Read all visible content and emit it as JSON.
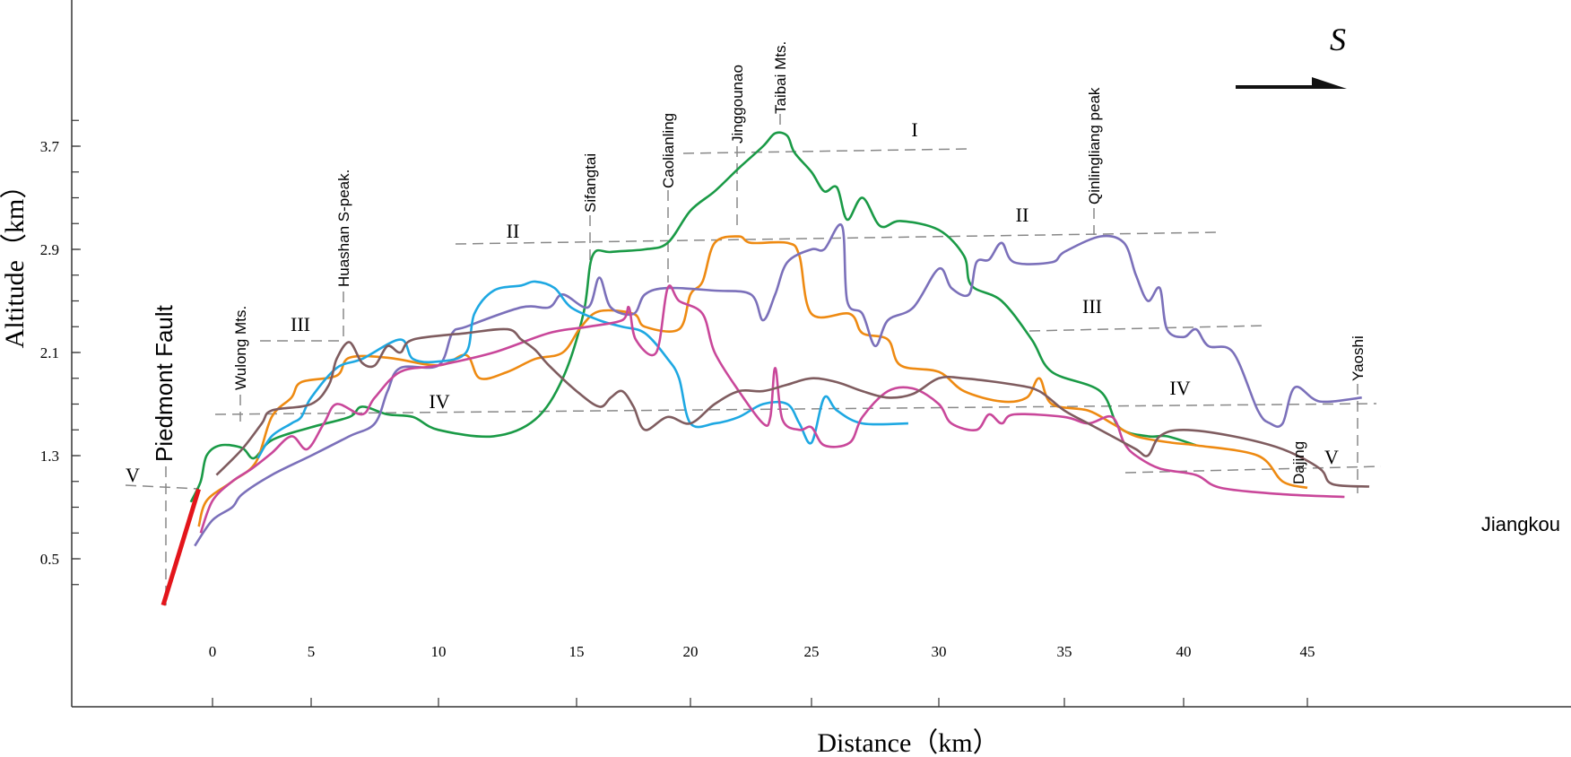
{
  "chart_data": {
    "type": "line",
    "title": "",
    "xlabel": "Distance（km）",
    "ylabel": "Altitude（km）",
    "xlim": [
      -5.8,
      55.9
    ],
    "ylim": [
      -0.66,
      4.84
    ],
    "x_ticks": [
      0,
      5,
      10,
      15,
      20,
      25,
      30,
      35,
      40,
      45
    ],
    "x_tick_labels": [
      "0",
      "5",
      "10",
      "15",
      "20",
      "25",
      "30",
      "35",
      "40",
      "45"
    ],
    "y_ticks": [
      3.7,
      2.9,
      2.1,
      1.3,
      0.5
    ],
    "y_tick_labels": [
      "3.7",
      "2.9",
      "2.1",
      "1.3",
      "0.5"
    ],
    "grid": false,
    "legend": "none",
    "direction_label": "S",
    "surface_labels": [
      "I",
      "II",
      "II",
      "III",
      "III",
      "IV",
      "IV",
      "V",
      "V"
    ],
    "place_labels": [
      "Piedmont Fault",
      "Wulong Mts.",
      "Huashan S-peak.",
      "Sifangtai",
      "Caolianling",
      "Jinggounao",
      "Taibai Mts.",
      "Qinlingliang peak",
      "Yaoshi",
      "Dajing",
      "Jiangkou"
    ],
    "fault": {
      "color": "#e3151b",
      "points": [
        [
          -2.5,
          0.14
        ],
        [
          -0.7,
          1.04
        ]
      ]
    },
    "series": [
      {
        "color": "#1a9a46",
        "points": [
          [
            -1.1,
            0.94
          ],
          [
            -0.6,
            1.1
          ],
          [
            -0.3,
            1.3
          ],
          [
            0.4,
            1.38
          ],
          [
            1.5,
            1.36
          ],
          [
            2.1,
            1.28
          ],
          [
            3,
            1.42
          ],
          [
            5,
            1.52
          ],
          [
            6.5,
            1.6
          ],
          [
            7,
            1.68
          ],
          [
            8,
            1.62
          ],
          [
            9,
            1.6
          ],
          [
            10,
            1.5
          ],
          [
            12,
            1.45
          ],
          [
            13.5,
            1.58
          ],
          [
            14.5,
            1.9
          ],
          [
            15.3,
            2.4
          ],
          [
            15.7,
            2.85
          ],
          [
            16.5,
            2.88
          ],
          [
            18,
            2.9
          ],
          [
            19,
            2.95
          ],
          [
            20,
            3.2
          ],
          [
            21,
            3.35
          ],
          [
            22,
            3.53
          ],
          [
            23,
            3.7
          ],
          [
            23.5,
            3.8
          ],
          [
            24,
            3.78
          ],
          [
            24.3,
            3.65
          ],
          [
            25,
            3.5
          ],
          [
            25.5,
            3.35
          ],
          [
            26,
            3.38
          ],
          [
            26.4,
            3.13
          ],
          [
            27,
            3.3
          ],
          [
            27.7,
            3.08
          ],
          [
            28.5,
            3.12
          ],
          [
            30,
            3.05
          ],
          [
            31,
            2.85
          ],
          [
            31.3,
            2.62
          ],
          [
            32.5,
            2.5
          ],
          [
            33.7,
            2.2
          ],
          [
            34.5,
            1.95
          ],
          [
            36.5,
            1.8
          ],
          [
            37.3,
            1.52
          ],
          [
            38.5,
            1.45
          ],
          [
            39.3,
            1.45
          ],
          [
            40.5,
            1.38
          ]
        ]
      },
      {
        "color": "#ee8a12",
        "points": [
          [
            -0.7,
            0.75
          ],
          [
            -0.3,
            0.95
          ],
          [
            1,
            1.1
          ],
          [
            2.2,
            1.25
          ],
          [
            3,
            1.6
          ],
          [
            4,
            1.75
          ],
          [
            4.5,
            1.87
          ],
          [
            6,
            1.92
          ],
          [
            6.5,
            2.06
          ],
          [
            8,
            2.06
          ],
          [
            10,
            2.0
          ],
          [
            11,
            2.08
          ],
          [
            11.5,
            1.9
          ],
          [
            12.5,
            1.95
          ],
          [
            13.5,
            2.05
          ],
          [
            14.5,
            2.1
          ],
          [
            15.2,
            2.3
          ],
          [
            16,
            2.42
          ],
          [
            17.5,
            2.4
          ],
          [
            18,
            2.3
          ],
          [
            19.5,
            2.28
          ],
          [
            20,
            2.55
          ],
          [
            20.5,
            2.65
          ],
          [
            21,
            2.95
          ],
          [
            22,
            3.0
          ],
          [
            22.5,
            2.95
          ],
          [
            24,
            2.95
          ],
          [
            24.5,
            2.85
          ],
          [
            25,
            2.4
          ],
          [
            26.5,
            2.4
          ],
          [
            27,
            2.25
          ],
          [
            28,
            2.2
          ],
          [
            28.5,
            2.0
          ],
          [
            30,
            1.95
          ],
          [
            31,
            1.8
          ],
          [
            32.5,
            1.72
          ],
          [
            33.5,
            1.75
          ],
          [
            34,
            1.9
          ],
          [
            34.5,
            1.7
          ],
          [
            36,
            1.65
          ],
          [
            37,
            1.55
          ],
          [
            38,
            1.45
          ],
          [
            39.5,
            1.4
          ],
          [
            40.5,
            1.38
          ],
          [
            43,
            1.3
          ],
          [
            44,
            1.1
          ],
          [
            45,
            1.05
          ]
        ]
      },
      {
        "color": "#7b70ba",
        "points": [
          [
            -0.9,
            0.6
          ],
          [
            0,
            0.8
          ],
          [
            1,
            0.9
          ],
          [
            1.5,
            1.0
          ],
          [
            3,
            1.15
          ],
          [
            5,
            1.3
          ],
          [
            6.5,
            1.45
          ],
          [
            7.5,
            1.55
          ],
          [
            8,
            1.8
          ],
          [
            8.5,
            1.98
          ],
          [
            10,
            2.0
          ],
          [
            10.5,
            2.25
          ],
          [
            11,
            2.3
          ],
          [
            13,
            2.45
          ],
          [
            14,
            2.45
          ],
          [
            14.5,
            2.55
          ],
          [
            15.5,
            2.45
          ],
          [
            16,
            2.68
          ],
          [
            16.5,
            2.45
          ],
          [
            17.5,
            2.4
          ],
          [
            18,
            2.55
          ],
          [
            19,
            2.6
          ],
          [
            21,
            2.58
          ],
          [
            22.5,
            2.55
          ],
          [
            23,
            2.35
          ],
          [
            23.5,
            2.55
          ],
          [
            24,
            2.8
          ],
          [
            25,
            2.9
          ],
          [
            25.5,
            2.9
          ],
          [
            26.2,
            3.08
          ],
          [
            26.4,
            2.5
          ],
          [
            27,
            2.4
          ],
          [
            27.5,
            2.15
          ],
          [
            28,
            2.35
          ],
          [
            29,
            2.45
          ],
          [
            30,
            2.75
          ],
          [
            30.5,
            2.6
          ],
          [
            31.2,
            2.55
          ],
          [
            31.5,
            2.8
          ],
          [
            32,
            2.82
          ],
          [
            32.5,
            2.95
          ],
          [
            33,
            2.8
          ],
          [
            34.5,
            2.8
          ],
          [
            35,
            2.88
          ],
          [
            36.5,
            3.0
          ],
          [
            37.5,
            2.95
          ],
          [
            38,
            2.7
          ],
          [
            38.5,
            2.5
          ],
          [
            39,
            2.6
          ],
          [
            39.3,
            2.28
          ],
          [
            40,
            2.22
          ],
          [
            40.5,
            2.28
          ],
          [
            41,
            2.15
          ],
          [
            42,
            2.1
          ],
          [
            43,
            1.65
          ],
          [
            43.5,
            1.55
          ],
          [
            44,
            1.55
          ],
          [
            44.5,
            1.83
          ],
          [
            45.5,
            1.72
          ],
          [
            47.2,
            1.75
          ]
        ]
      },
      {
        "color": "#1ea8e2",
        "points": [
          [
            2.3,
            1.28
          ],
          [
            3,
            1.45
          ],
          [
            4,
            1.55
          ],
          [
            4.5,
            1.6
          ],
          [
            5,
            1.75
          ],
          [
            6,
            1.98
          ],
          [
            7,
            2.05
          ],
          [
            8.5,
            2.2
          ],
          [
            9,
            2.05
          ],
          [
            10,
            2.03
          ],
          [
            11,
            2.1
          ],
          [
            11.3,
            2.4
          ],
          [
            12,
            2.58
          ],
          [
            13,
            2.62
          ],
          [
            13.5,
            2.65
          ],
          [
            14.2,
            2.6
          ],
          [
            14.8,
            2.45
          ],
          [
            16,
            2.35
          ],
          [
            17,
            2.3
          ],
          [
            18,
            2.25
          ],
          [
            19,
            2.05
          ],
          [
            19.5,
            1.9
          ],
          [
            20,
            1.55
          ],
          [
            21,
            1.55
          ],
          [
            22,
            1.6
          ],
          [
            23,
            1.7
          ],
          [
            24,
            1.7
          ],
          [
            24.5,
            1.55
          ],
          [
            25,
            1.4
          ],
          [
            25.5,
            1.75
          ],
          [
            26,
            1.65
          ],
          [
            27,
            1.55
          ],
          [
            28.8,
            1.55
          ]
        ]
      },
      {
        "color": "#c9479a",
        "points": [
          [
            -0.6,
            0.7
          ],
          [
            0,
            0.95
          ],
          [
            1,
            1.1
          ],
          [
            2,
            1.2
          ],
          [
            3,
            1.32
          ],
          [
            4,
            1.45
          ],
          [
            4.8,
            1.35
          ],
          [
            5.5,
            1.55
          ],
          [
            6,
            1.7
          ],
          [
            7,
            1.62
          ],
          [
            7.5,
            1.75
          ],
          [
            8.5,
            1.95
          ],
          [
            10,
            2.0
          ],
          [
            12,
            2.1
          ],
          [
            14,
            2.25
          ],
          [
            15.5,
            2.3
          ],
          [
            17,
            2.35
          ],
          [
            17.3,
            2.45
          ],
          [
            17.6,
            2.2
          ],
          [
            18.5,
            2.1
          ],
          [
            19,
            2.6
          ],
          [
            19.5,
            2.5
          ],
          [
            20.5,
            2.4
          ],
          [
            21,
            2.1
          ],
          [
            22,
            1.8
          ],
          [
            23,
            1.55
          ],
          [
            23.3,
            1.6
          ],
          [
            23.5,
            1.98
          ],
          [
            23.8,
            1.58
          ],
          [
            24.5,
            1.5
          ],
          [
            25,
            1.52
          ],
          [
            25.5,
            1.38
          ],
          [
            26.5,
            1.4
          ],
          [
            27,
            1.6
          ],
          [
            28,
            1.8
          ],
          [
            29,
            1.82
          ],
          [
            30,
            1.7
          ],
          [
            30.5,
            1.55
          ],
          [
            31.5,
            1.5
          ],
          [
            32,
            1.62
          ],
          [
            32.5,
            1.55
          ],
          [
            33,
            1.62
          ],
          [
            35,
            1.6
          ],
          [
            36,
            1.55
          ],
          [
            37,
            1.6
          ],
          [
            37.5,
            1.4
          ],
          [
            38,
            1.3
          ],
          [
            39,
            1.2
          ],
          [
            40.5,
            1.15
          ],
          [
            41.5,
            1.05
          ],
          [
            44,
            1.0
          ],
          [
            46.5,
            0.98
          ]
        ]
      },
      {
        "color": "#7f5c5f",
        "points": [
          [
            0.2,
            1.15
          ],
          [
            1.5,
            1.35
          ],
          [
            2.5,
            1.55
          ],
          [
            3,
            1.65
          ],
          [
            5,
            1.7
          ],
          [
            5.7,
            1.85
          ],
          [
            6,
            2.05
          ],
          [
            6.5,
            2.18
          ],
          [
            7,
            2.02
          ],
          [
            7.5,
            2.0
          ],
          [
            8,
            2.15
          ],
          [
            8.5,
            2.1
          ],
          [
            9,
            2.2
          ],
          [
            11,
            2.25
          ],
          [
            12.5,
            2.28
          ],
          [
            13,
            2.2
          ],
          [
            13.5,
            2.12
          ],
          [
            14,
            2.0
          ],
          [
            15,
            1.8
          ],
          [
            16,
            1.68
          ],
          [
            16.5,
            1.75
          ],
          [
            17,
            1.8
          ],
          [
            17.5,
            1.68
          ],
          [
            18,
            1.5
          ],
          [
            19,
            1.6
          ],
          [
            20,
            1.55
          ],
          [
            21,
            1.7
          ],
          [
            22,
            1.8
          ],
          [
            23,
            1.8
          ],
          [
            24,
            1.85
          ],
          [
            25,
            1.9
          ],
          [
            26,
            1.87
          ],
          [
            27,
            1.8
          ],
          [
            28,
            1.75
          ],
          [
            29,
            1.78
          ],
          [
            30,
            1.9
          ],
          [
            31,
            1.9
          ],
          [
            33,
            1.85
          ],
          [
            34,
            1.8
          ],
          [
            35,
            1.65
          ],
          [
            36,
            1.55
          ],
          [
            37,
            1.45
          ],
          [
            38,
            1.35
          ],
          [
            38.5,
            1.3
          ],
          [
            39,
            1.45
          ],
          [
            40,
            1.5
          ],
          [
            42,
            1.45
          ],
          [
            44,
            1.35
          ],
          [
            45.5,
            1.2
          ],
          [
            46,
            1.08
          ],
          [
            47.5,
            1.06
          ]
        ]
      }
    ]
  }
}
